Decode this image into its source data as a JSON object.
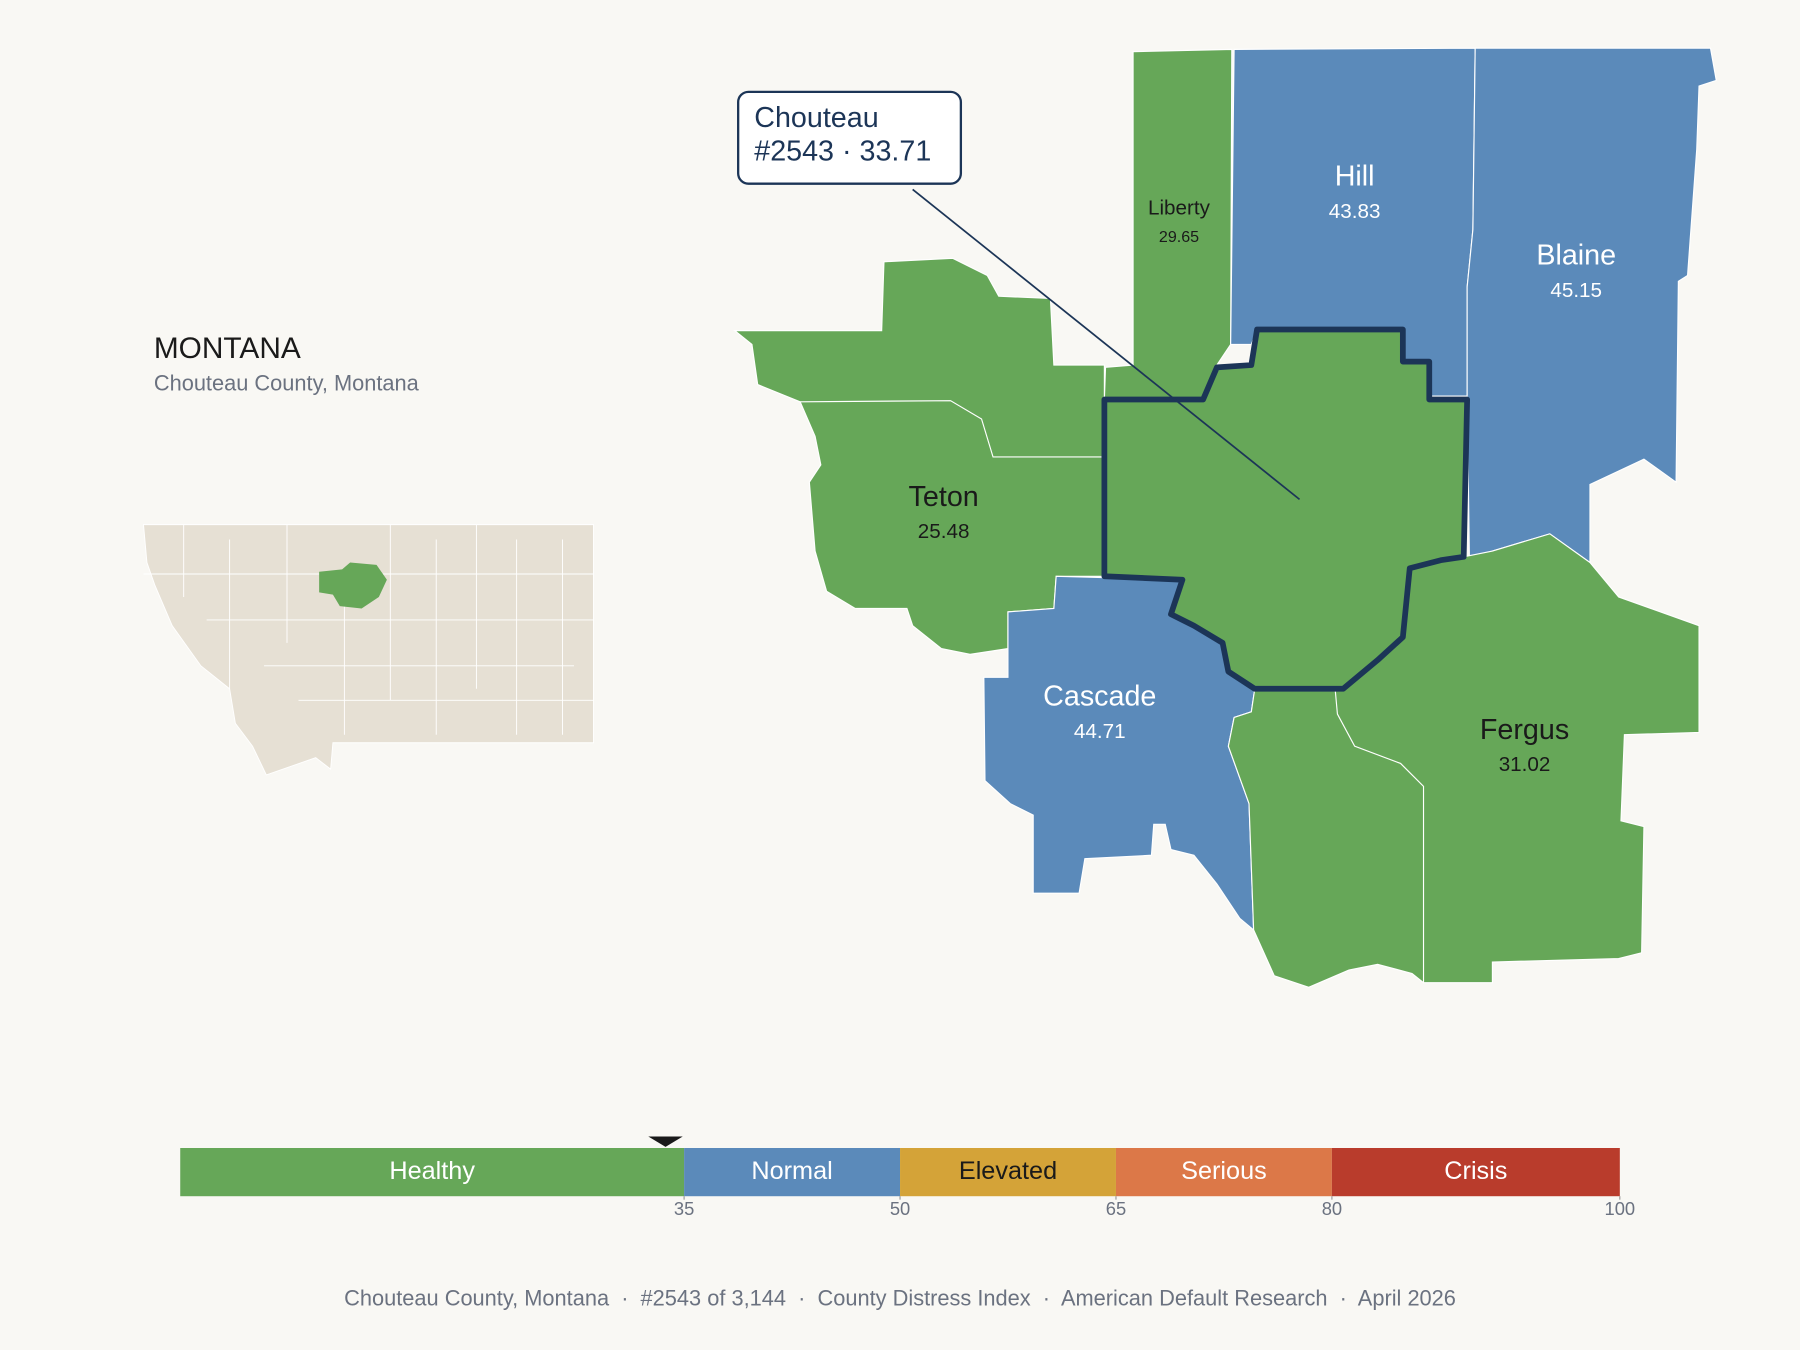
{
  "header": {
    "title": "MONTANA",
    "subtitle": "Chouteau County, Montana"
  },
  "callout": {
    "name": "Chouteau",
    "text": "#2543 · 33.71"
  },
  "counties": [
    {
      "name": "Liberty",
      "value": 29.65,
      "color": "#66a758"
    },
    {
      "name": "Hill",
      "value": 43.83,
      "color": "#5b8aba"
    },
    {
      "name": "Blaine",
      "value": 45.15,
      "color": "#5b8aba"
    },
    {
      "name": "Teton",
      "value": 25.48,
      "color": "#66a758"
    },
    {
      "name": "Cascade",
      "value": 44.71,
      "color": "#5b8aba"
    },
    {
      "name": "Fergus",
      "value": 31.02,
      "color": "#66a758"
    }
  ],
  "scale": {
    "range": [
      0,
      100
    ],
    "marker": 33.71,
    "bands": [
      {
        "label": "Healthy",
        "from": 0,
        "to": 35,
        "color": "#66a758"
      },
      {
        "label": "Normal",
        "from": 35,
        "to": 50,
        "color": "#5b8aba"
      },
      {
        "label": "Elevated",
        "from": 50,
        "to": 65,
        "color": "#d4a338"
      },
      {
        "label": "Serious",
        "from": 65,
        "to": 80,
        "color": "#dc7848"
      },
      {
        "label": "Crisis",
        "from": 80,
        "to": 100,
        "color": "#b93c2c"
      }
    ],
    "ticks": [
      35,
      50,
      65,
      80,
      100
    ]
  },
  "footer": "Chouteau County, Montana  ·  #2543 of 3,144  ·  County Distress Index  ·  American Default Research  ·  April 2026"
}
